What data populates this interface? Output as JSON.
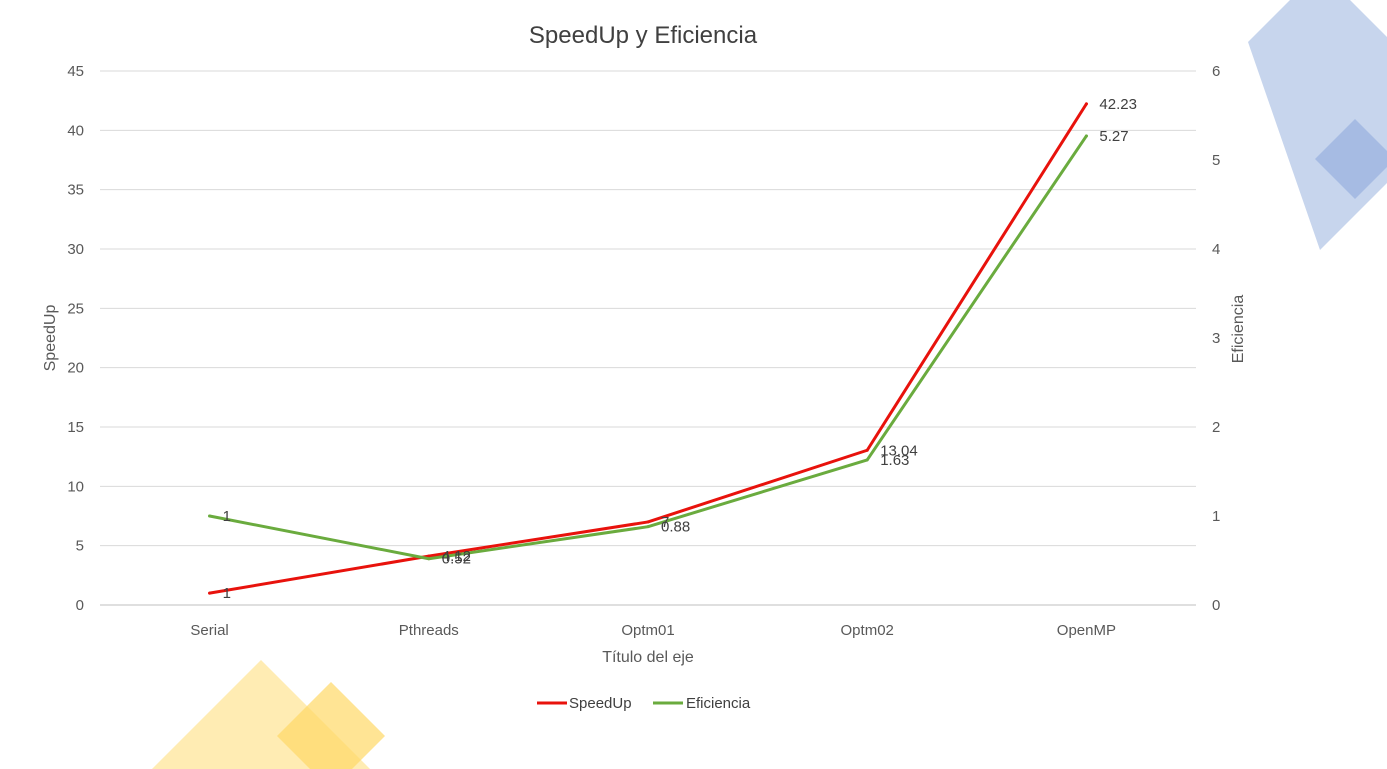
{
  "chart_data": {
    "type": "line",
    "title": "SpeedUp y Eficiencia",
    "xlabel": "Título del eje",
    "ylabel": "SpeedUp",
    "y2label": "Eficiencia",
    "categories": [
      "Serial",
      "Pthreads",
      "Optm01",
      "Optm02",
      "OpenMP"
    ],
    "ylim": [
      0,
      45
    ],
    "yticks": [
      0,
      5,
      10,
      15,
      20,
      25,
      30,
      35,
      40,
      45
    ],
    "y2lim": [
      0,
      6
    ],
    "y2ticks": [
      0,
      1,
      2,
      3,
      4,
      5,
      6
    ],
    "grid": true,
    "legend_position": "bottom",
    "series": [
      {
        "name": "SpeedUp",
        "axis": "left",
        "color": "#e8120c",
        "values": [
          1,
          4.12,
          7,
          13.04,
          42.23
        ],
        "labels": [
          "1",
          "4.12",
          "7",
          "13.04",
          "42.23"
        ]
      },
      {
        "name": "Eficiencia",
        "axis": "right",
        "color": "#6aab3e",
        "values": [
          1,
          0.52,
          0.88,
          1.63,
          5.27
        ],
        "labels": [
          "1",
          "0.52",
          "0.88",
          "1.63",
          "5.27"
        ]
      }
    ]
  }
}
